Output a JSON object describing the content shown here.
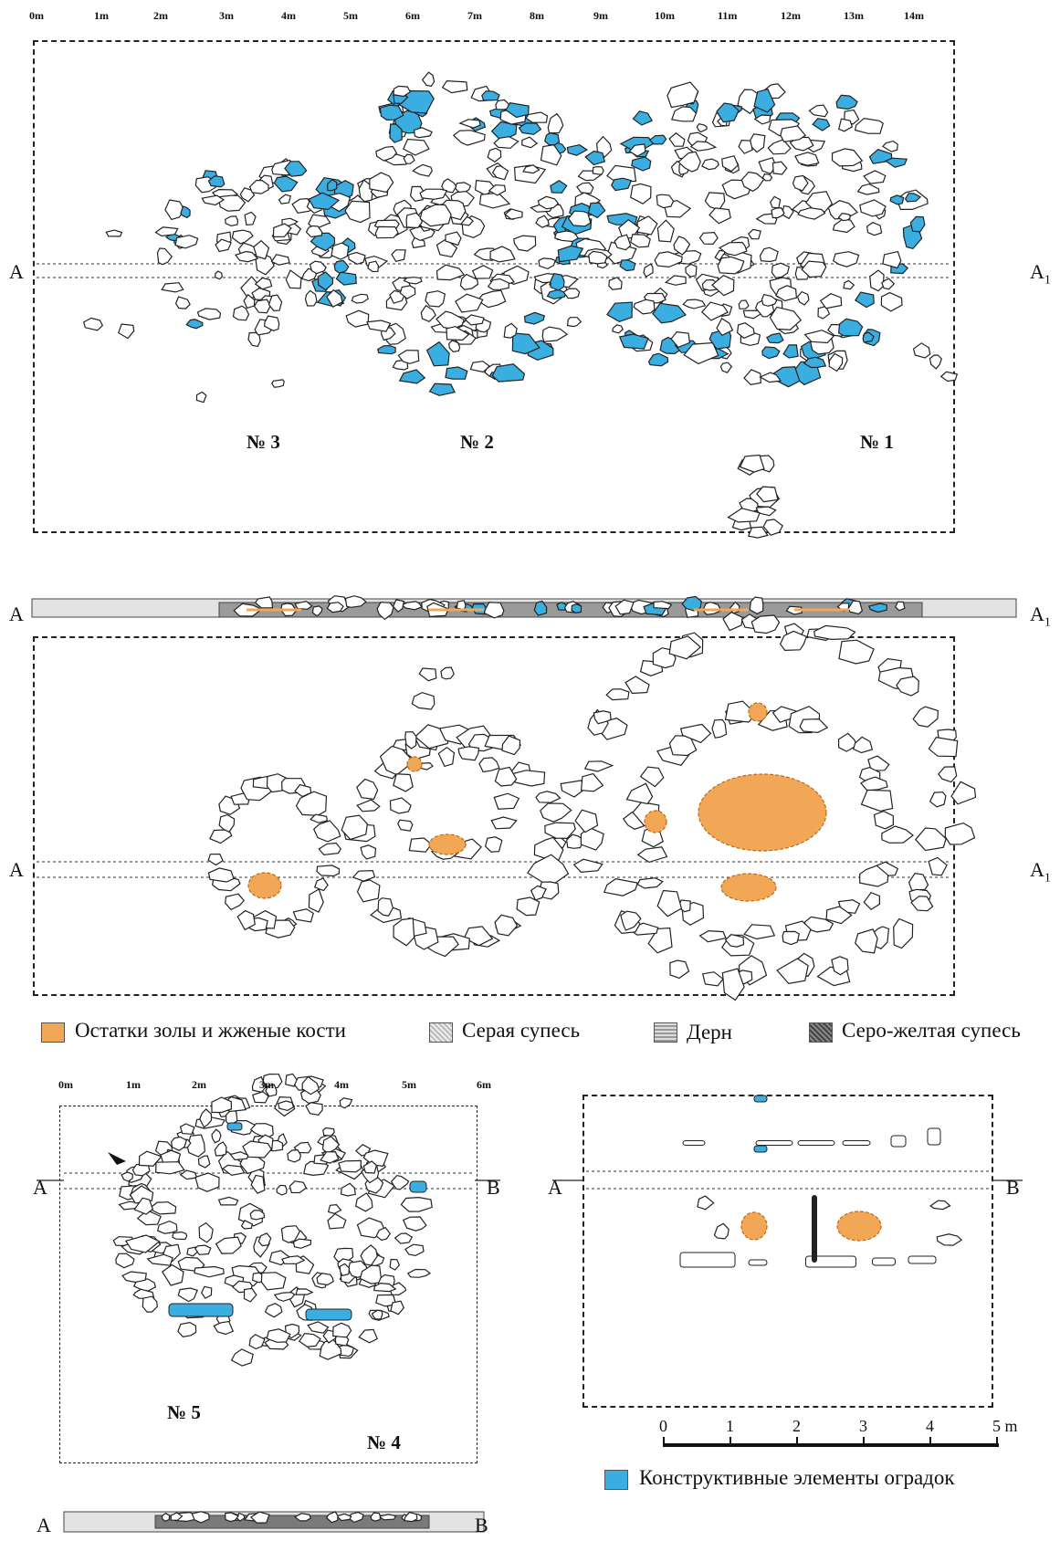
{
  "top_scale": [
    "0m",
    "1m",
    "2m",
    "3m",
    "4m",
    "5m",
    "6m",
    "7m",
    "8m",
    "9m",
    "10m",
    "11m",
    "12m",
    "13m",
    "14m"
  ],
  "bottom_scale": [
    "0m",
    "1m",
    "2m",
    "3m",
    "4m",
    "5m",
    "6m"
  ],
  "scale_bar": {
    "labels": [
      "0",
      "1",
      "2",
      "3",
      "4",
      "5 m"
    ]
  },
  "section_labels": {
    "a": "A",
    "a1": "A",
    "a1_sub": "1",
    "b": "B"
  },
  "mounds": {
    "n1": "№ 1",
    "n2": "№ 2",
    "n3": "№ 3",
    "n4": "№ 4",
    "n5": "№ 5"
  },
  "legend": [
    {
      "label": "Остатки золы и жженые кости",
      "color": "#f2a756"
    },
    {
      "label": "Серая супесь",
      "color": "#d9d9d9"
    },
    {
      "label": "Дерн",
      "color": "#b5b5b5"
    },
    {
      "label": "Серо-желтая супесь",
      "color": "#6e6e6e"
    },
    {
      "label": "Конструктивные элементы оградок",
      "color": "#3aaee0"
    }
  ],
  "colors": {
    "stone_fill": "#ffffff",
    "stone_line": "#222222",
    "blue": "#3aaee0",
    "orange": "#f2a756"
  }
}
